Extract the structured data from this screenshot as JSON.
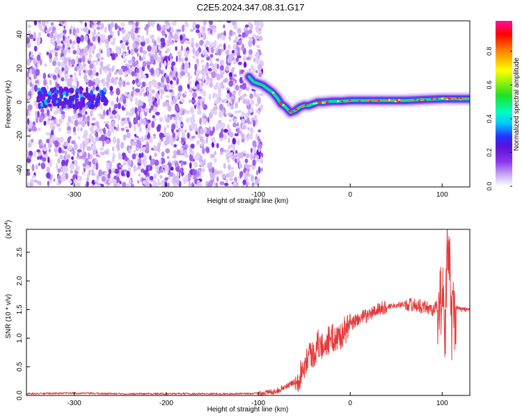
{
  "title": "C2E5.2024.347.08.31.G17",
  "chart_data": [
    {
      "type": "heatmap",
      "xlabel": "Height of straight line (km)",
      "ylabel": "Frequency (Hz)",
      "xlim": [
        -352,
        130
      ],
      "ylim": [
        -50,
        48
      ],
      "xticks": [
        "-300",
        "-200",
        "-100",
        "0",
        "100"
      ],
      "xtick_values": [
        -300,
        -200,
        -100,
        0,
        100
      ],
      "yticks": [
        "-40",
        "-20",
        "0",
        "20",
        "40"
      ],
      "ytick_values": [
        -40,
        -20,
        0,
        20,
        40
      ],
      "colorbar": {
        "label": "Normalized spectral amplitude",
        "range": [
          0,
          0.98
        ],
        "ticks": [
          "0.0",
          "0.2",
          "0.4",
          "0.6",
          "0.8"
        ],
        "tick_values": [
          0.0,
          0.2,
          0.4,
          0.6,
          0.8
        ],
        "colors": [
          "#ffffff",
          "#c9a8f2",
          "#8a35ee",
          "#5a10d8",
          "#2a30ff",
          "#00c8ff",
          "#00ffa0",
          "#20e020",
          "#ffff00",
          "#ff8000",
          "#ff0000",
          "#ff10a0"
        ]
      },
      "noise_region": {
        "x": [
          -352,
          -96
        ],
        "y": [
          -50,
          48
        ]
      },
      "ridge": {
        "x": [
          -110,
          -105,
          -100,
          -95,
          -90,
          -85,
          -80,
          -75,
          -70,
          -65,
          -60,
          -55,
          -50,
          -45,
          -40,
          -35,
          -30,
          -20,
          -10,
          0,
          20,
          40,
          60,
          80,
          100,
          110,
          120,
          130
        ],
        "y": [
          15,
          12,
          11,
          10,
          8,
          6,
          3,
          -1,
          -3,
          -6,
          -5,
          -3,
          -2,
          -2,
          -1,
          0,
          0,
          0.5,
          0.5,
          1,
          1,
          1,
          1,
          1.5,
          2,
          2,
          2,
          2
        ]
      },
      "low_freq_band": {
        "x": [
          -340,
          -265
        ],
        "y": [
          -3,
          8
        ]
      }
    },
    {
      "type": "line",
      "xlabel": "Height of straight line (km)",
      "ylabel": "SNR (10 * v/v)",
      "ymultiplier_label": "(x10",
      "ymultiplier_exp": "4",
      "ymultiplier_close": ")",
      "xlim": [
        -352,
        130
      ],
      "ylim": [
        0,
        2.9
      ],
      "xticks": [
        "-300",
        "-200",
        "-100",
        "0",
        "100"
      ],
      "xtick_values": [
        -300,
        -200,
        -100,
        0,
        100
      ],
      "yticks": [
        "0.0",
        "0.5",
        "1.0",
        "1.5",
        "2.0",
        "2.5"
      ],
      "ytick_values": [
        0.0,
        0.5,
        1.0,
        1.5,
        2.0,
        2.5
      ],
      "color": "#e53a3a",
      "series": [
        {
          "x": [
            -352,
            -300,
            -250,
            -200,
            -150,
            -110,
            -100,
            -90,
            -80,
            -75,
            -70,
            -65,
            -60,
            -55,
            -50,
            -45,
            -40,
            -35,
            -30,
            -25,
            -20,
            -15,
            -10,
            -5,
            0,
            5,
            10,
            20,
            30,
            40,
            50,
            60,
            70,
            80,
            90,
            95,
            100,
            103,
            105,
            107,
            110,
            115,
            120,
            130
          ],
          "y": [
            0.03,
            0.04,
            0.03,
            0.03,
            0.03,
            0.03,
            0.04,
            0.05,
            0.08,
            0.12,
            0.15,
            0.2,
            0.25,
            0.35,
            0.55,
            0.75,
            0.7,
            0.9,
            0.85,
            0.95,
            1.0,
            1.0,
            1.05,
            1.15,
            1.2,
            1.3,
            1.35,
            1.4,
            1.5,
            1.55,
            1.58,
            1.6,
            1.58,
            1.55,
            1.5,
            1.55,
            1.7,
            1.1,
            2.2,
            2.8,
            1.3,
            1.55,
            1.5,
            1.5
          ]
        }
      ]
    }
  ]
}
